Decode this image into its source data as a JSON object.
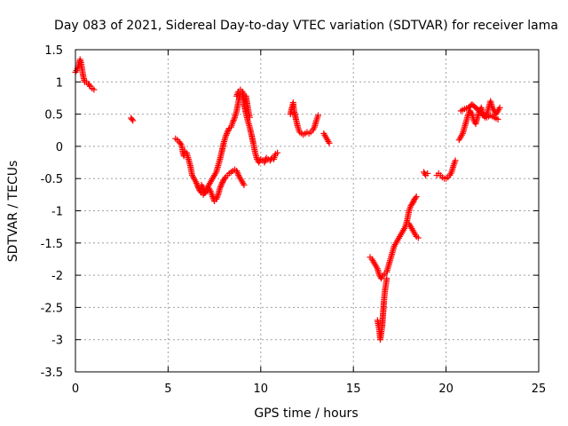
{
  "chart_data": {
    "type": "scatter",
    "title": "Day 083 of 2021, Sidereal Day-to-day VTEC variation (SDTVAR) for receiver lama",
    "xlabel": "GPS time / hours",
    "ylabel": "SDTVAR / TECUs",
    "xlim": [
      0,
      25
    ],
    "ylim": [
      -3.5,
      1.5
    ],
    "xticks": [
      0,
      5,
      10,
      15,
      20,
      25
    ],
    "xtick_labels": [
      "0",
      "5",
      "10",
      "15",
      "20",
      "25"
    ],
    "yticks": [
      -3.5,
      -3,
      -2.5,
      -2,
      -1.5,
      -1,
      -0.5,
      0,
      0.5,
      1,
      1.5
    ],
    "ytick_labels": [
      "-3.5",
      "-3",
      "-2.5",
      "-2",
      "-1.5",
      "-1",
      "-0.5",
      "0",
      "0.5",
      "1",
      "1.5"
    ],
    "grid": true,
    "marker": "plus",
    "color": "#ff0000",
    "segments": [
      [
        [
          0.0,
          1.15
        ],
        [
          0.1,
          1.2
        ],
        [
          0.2,
          1.28
        ],
        [
          0.25,
          1.35
        ],
        [
          0.3,
          1.3
        ],
        [
          0.35,
          1.22
        ],
        [
          0.4,
          1.12
        ],
        [
          0.45,
          1.05
        ],
        [
          0.5,
          1.0
        ],
        [
          0.6,
          1.0
        ],
        [
          0.7,
          0.97
        ],
        [
          0.8,
          0.93
        ],
        [
          0.9,
          0.9
        ],
        [
          1.0,
          0.88
        ]
      ],
      [
        [
          3.0,
          0.44
        ],
        [
          3.1,
          0.4
        ]
      ],
      [
        [
          5.4,
          0.12
        ],
        [
          5.5,
          0.1
        ],
        [
          5.6,
          0.07
        ],
        [
          5.7,
          0.03
        ],
        [
          5.75,
          0.0
        ],
        [
          5.8,
          -0.1
        ],
        [
          5.85,
          -0.15
        ],
        [
          5.9,
          -0.08
        ],
        [
          6.0,
          -0.1
        ],
        [
          6.1,
          -0.2
        ],
        [
          6.2,
          -0.3
        ],
        [
          6.3,
          -0.45
        ],
        [
          6.4,
          -0.5
        ],
        [
          6.5,
          -0.55
        ],
        [
          6.6,
          -0.62
        ],
        [
          6.7,
          -0.68
        ],
        [
          6.8,
          -0.72
        ],
        [
          6.9,
          -0.75
        ],
        [
          7.0,
          -0.7
        ],
        [
          7.1,
          -0.65
        ],
        [
          7.2,
          -0.6
        ],
        [
          7.3,
          -0.55
        ],
        [
          7.4,
          -0.5
        ],
        [
          7.5,
          -0.45
        ],
        [
          7.6,
          -0.4
        ],
        [
          7.7,
          -0.3
        ],
        [
          7.8,
          -0.2
        ],
        [
          7.9,
          -0.08
        ],
        [
          8.0,
          0.05
        ],
        [
          8.1,
          0.15
        ],
        [
          8.2,
          0.22
        ],
        [
          8.3,
          0.28
        ],
        [
          8.4,
          0.3
        ],
        [
          8.5,
          0.38
        ],
        [
          8.6,
          0.45
        ],
        [
          8.7,
          0.55
        ],
        [
          8.8,
          0.7
        ],
        [
          8.9,
          0.82
        ],
        [
          9.0,
          0.8
        ],
        [
          9.1,
          0.65
        ],
        [
          9.2,
          0.52
        ],
        [
          9.3,
          0.4
        ],
        [
          9.4,
          0.3
        ],
        [
          9.5,
          0.18
        ],
        [
          9.6,
          0.05
        ],
        [
          9.7,
          -0.1
        ],
        [
          9.8,
          -0.2
        ],
        [
          9.9,
          -0.25
        ],
        [
          10.0,
          -0.2
        ],
        [
          10.1,
          -0.22
        ],
        [
          10.2,
          -0.25
        ],
        [
          10.3,
          -0.18
        ],
        [
          10.4,
          -0.2
        ],
        [
          10.5,
          -0.22
        ],
        [
          10.6,
          -0.18
        ],
        [
          10.7,
          -0.2
        ],
        [
          10.8,
          -0.12
        ],
        [
          10.9,
          -0.1
        ]
      ],
      [
        [
          6.8,
          -0.6
        ],
        [
          6.9,
          -0.65
        ],
        [
          7.0,
          -0.72
        ],
        [
          7.1,
          -0.7
        ],
        [
          7.2,
          -0.65
        ],
        [
          7.3,
          -0.7
        ],
        [
          7.4,
          -0.78
        ],
        [
          7.5,
          -0.85
        ],
        [
          7.6,
          -0.82
        ],
        [
          7.7,
          -0.75
        ],
        [
          7.8,
          -0.65
        ],
        [
          7.9,
          -0.58
        ],
        [
          8.0,
          -0.52
        ],
        [
          8.1,
          -0.48
        ],
        [
          8.2,
          -0.45
        ],
        [
          8.3,
          -0.42
        ],
        [
          8.4,
          -0.4
        ],
        [
          8.5,
          -0.38
        ],
        [
          8.6,
          -0.36
        ],
        [
          8.7,
          -0.38
        ],
        [
          8.8,
          -0.45
        ],
        [
          8.9,
          -0.5
        ],
        [
          9.0,
          -0.55
        ],
        [
          9.1,
          -0.6
        ]
      ],
      [
        [
          8.7,
          0.78
        ],
        [
          8.8,
          0.85
        ],
        [
          8.9,
          0.88
        ],
        [
          9.0,
          0.85
        ],
        [
          9.1,
          0.8
        ],
        [
          9.2,
          0.78
        ],
        [
          9.3,
          0.6
        ],
        [
          9.4,
          0.45
        ]
      ],
      [
        [
          11.6,
          0.5
        ],
        [
          11.7,
          0.62
        ],
        [
          11.75,
          0.68
        ],
        [
          11.8,
          0.55
        ],
        [
          11.9,
          0.42
        ],
        [
          12.0,
          0.3
        ],
        [
          12.1,
          0.22
        ],
        [
          12.2,
          0.2
        ],
        [
          12.3,
          0.18
        ],
        [
          12.4,
          0.2
        ],
        [
          12.5,
          0.22
        ],
        [
          12.6,
          0.2
        ],
        [
          12.7,
          0.22
        ],
        [
          12.8,
          0.25
        ],
        [
          12.9,
          0.3
        ],
        [
          13.0,
          0.4
        ],
        [
          13.1,
          0.48
        ]
      ],
      [
        [
          13.4,
          0.2
        ],
        [
          13.5,
          0.15
        ],
        [
          13.6,
          0.1
        ],
        [
          13.7,
          0.05
        ]
      ],
      [
        [
          15.9,
          -1.72
        ],
        [
          16.0,
          -1.75
        ],
        [
          16.1,
          -1.8
        ],
        [
          16.2,
          -1.85
        ],
        [
          16.3,
          -1.9
        ],
        [
          16.4,
          -2.0
        ],
        [
          16.5,
          -2.05
        ],
        [
          16.6,
          -2.0
        ],
        [
          16.7,
          -1.98
        ],
        [
          16.8,
          -1.95
        ],
        [
          16.9,
          -1.85
        ],
        [
          17.0,
          -1.75
        ],
        [
          17.1,
          -1.65
        ],
        [
          17.2,
          -1.55
        ],
        [
          17.3,
          -1.5
        ],
        [
          17.4,
          -1.45
        ],
        [
          17.5,
          -1.4
        ],
        [
          17.6,
          -1.35
        ],
        [
          17.7,
          -1.3
        ],
        [
          17.8,
          -1.25
        ],
        [
          17.9,
          -1.15
        ],
        [
          18.0,
          -1.0
        ],
        [
          18.1,
          -0.92
        ],
        [
          18.2,
          -0.88
        ],
        [
          18.3,
          -0.82
        ],
        [
          18.4,
          -0.78
        ]
      ],
      [
        [
          16.3,
          -2.7
        ],
        [
          16.4,
          -2.85
        ],
        [
          16.45,
          -3.0
        ],
        [
          16.5,
          -2.9
        ],
        [
          16.55,
          -2.8
        ],
        [
          16.6,
          -2.6
        ],
        [
          16.65,
          -2.4
        ],
        [
          16.7,
          -2.25
        ],
        [
          16.75,
          -2.15
        ],
        [
          16.8,
          -2.05
        ]
      ],
      [
        [
          18.0,
          -1.2
        ],
        [
          18.1,
          -1.25
        ],
        [
          18.2,
          -1.3
        ],
        [
          18.3,
          -1.35
        ],
        [
          18.4,
          -1.4
        ],
        [
          18.5,
          -1.42
        ]
      ],
      [
        [
          18.8,
          -0.4
        ],
        [
          18.9,
          -0.45
        ],
        [
          19.0,
          -0.42
        ]
      ],
      [
        [
          19.5,
          -0.45
        ],
        [
          19.6,
          -0.42
        ],
        [
          19.7,
          -0.45
        ],
        [
          19.8,
          -0.48
        ],
        [
          19.9,
          -0.5
        ],
        [
          20.0,
          -0.5
        ],
        [
          20.1,
          -0.48
        ],
        [
          20.2,
          -0.45
        ],
        [
          20.3,
          -0.4
        ],
        [
          20.4,
          -0.3
        ],
        [
          20.5,
          -0.22
        ]
      ],
      [
        [
          20.7,
          0.1
        ],
        [
          20.8,
          0.15
        ],
        [
          20.9,
          0.2
        ],
        [
          21.0,
          0.3
        ],
        [
          21.1,
          0.4
        ],
        [
          21.2,
          0.5
        ],
        [
          21.3,
          0.55
        ],
        [
          21.4,
          0.5
        ],
        [
          21.5,
          0.4
        ],
        [
          21.6,
          0.35
        ],
        [
          21.7,
          0.45
        ],
        [
          21.8,
          0.55
        ],
        [
          21.9,
          0.6
        ],
        [
          22.0,
          0.5
        ],
        [
          22.1,
          0.45
        ],
        [
          22.2,
          0.5
        ],
        [
          22.3,
          0.6
        ],
        [
          22.4,
          0.7
        ],
        [
          22.5,
          0.6
        ],
        [
          22.6,
          0.55
        ],
        [
          22.7,
          0.5
        ],
        [
          22.8,
          0.55
        ],
        [
          22.9,
          0.6
        ]
      ],
      [
        [
          20.8,
          0.55
        ],
        [
          21.0,
          0.58
        ],
        [
          21.2,
          0.6
        ],
        [
          21.4,
          0.65
        ],
        [
          21.6,
          0.6
        ],
        [
          21.8,
          0.55
        ],
        [
          22.0,
          0.48
        ],
        [
          22.2,
          0.45
        ],
        [
          22.4,
          0.48
        ],
        [
          22.6,
          0.45
        ],
        [
          22.8,
          0.42
        ]
      ]
    ]
  }
}
